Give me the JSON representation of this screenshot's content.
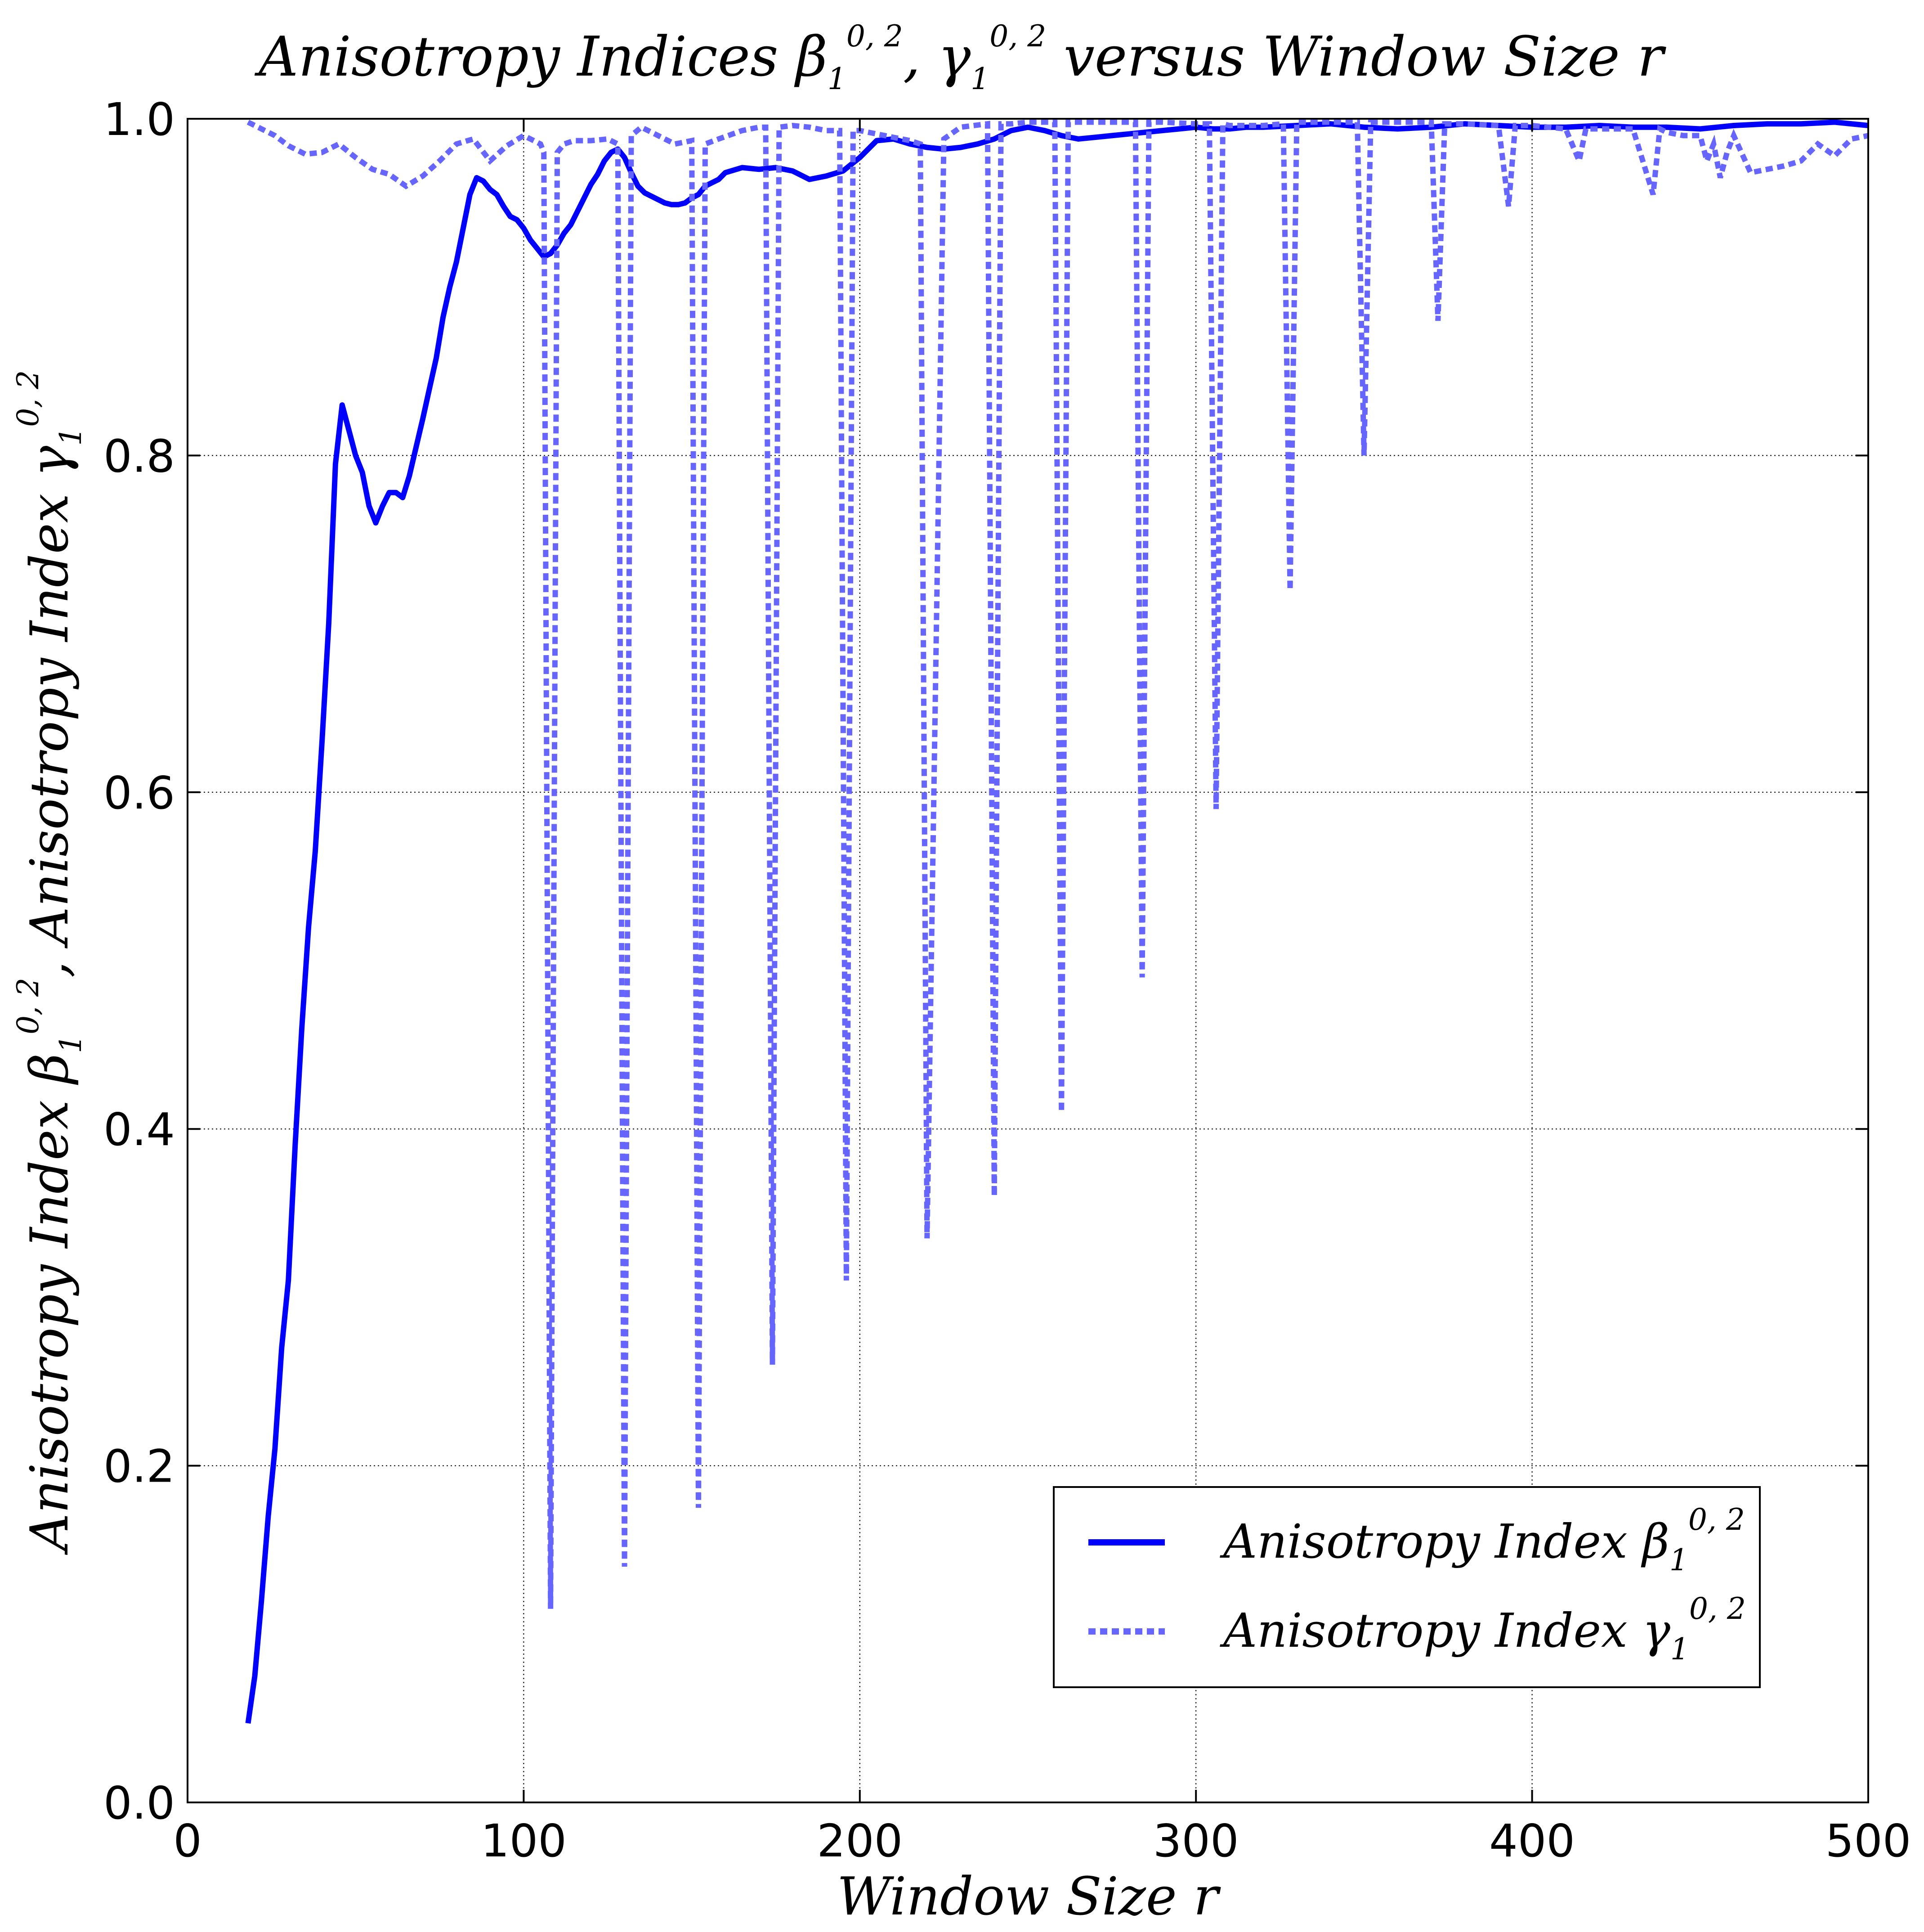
{
  "chart_data": {
    "type": "line",
    "title": {
      "pre": "Anisotropy Indices ",
      "sym1": "β",
      "mid": ", ",
      "sym2": "γ",
      "sub": "1",
      "sup": "0, 2",
      "post": " versus Window Size r"
    },
    "xlabel": "Window Size r",
    "ylabel": {
      "pre": "Anisotropy Index ",
      "sym1": "β",
      "sep": ",  Anisotropy Index ",
      "sym2": "γ",
      "sub": "1",
      "sup": "0, 2"
    },
    "xlim": [
      0,
      500
    ],
    "ylim": [
      0.0,
      1.0
    ],
    "x_ticks": [
      "0",
      "100",
      "200",
      "300",
      "400",
      "500"
    ],
    "x_tick_values": [
      0,
      100,
      200,
      300,
      400,
      500
    ],
    "y_ticks": [
      "0.0",
      "0.2",
      "0.4",
      "0.6",
      "0.8",
      "1.0"
    ],
    "y_tick_values": [
      0.0,
      0.2,
      0.4,
      0.6,
      0.8,
      1.0
    ],
    "grid": true,
    "legend_position": "lower-right",
    "series": [
      {
        "name": {
          "pre": "Anisotropy Index ",
          "sym": "β",
          "sub": "1",
          "sup": "0, 2"
        },
        "style": "solid",
        "color": "#0000ff",
        "x": [
          18,
          20,
          22,
          24,
          26,
          28,
          30,
          32,
          34,
          36,
          38,
          40,
          42,
          44,
          46,
          48,
          50,
          52,
          54,
          56,
          58,
          60,
          62,
          64,
          66,
          68,
          70,
          72,
          74,
          76,
          78,
          80,
          82,
          84,
          86,
          88,
          90,
          92,
          94,
          96,
          98,
          100,
          102,
          104,
          106,
          108,
          110,
          112,
          114,
          116,
          118,
          120,
          122,
          124,
          126,
          128,
          130,
          132,
          134,
          136,
          138,
          140,
          142,
          144,
          146,
          148,
          150,
          152,
          154,
          156,
          158,
          160,
          165,
          170,
          175,
          180,
          185,
          190,
          195,
          200,
          205,
          210,
          215,
          220,
          225,
          230,
          235,
          240,
          245,
          250,
          255,
          260,
          265,
          270,
          275,
          280,
          285,
          290,
          295,
          300,
          305,
          310,
          315,
          320,
          330,
          340,
          350,
          360,
          370,
          380,
          390,
          400,
          410,
          420,
          430,
          440,
          450,
          460,
          470,
          480,
          490,
          500
        ],
        "values": [
          0.047,
          0.075,
          0.12,
          0.17,
          0.21,
          0.27,
          0.31,
          0.39,
          0.46,
          0.52,
          0.565,
          0.63,
          0.7,
          0.795,
          0.83,
          0.815,
          0.8,
          0.79,
          0.77,
          0.76,
          0.77,
          0.778,
          0.778,
          0.775,
          0.788,
          0.805,
          0.822,
          0.84,
          0.858,
          0.882,
          0.9,
          0.915,
          0.935,
          0.955,
          0.965,
          0.963,
          0.958,
          0.955,
          0.948,
          0.942,
          0.94,
          0.935,
          0.928,
          0.923,
          0.918,
          0.92,
          0.925,
          0.932,
          0.937,
          0.945,
          0.953,
          0.961,
          0.967,
          0.975,
          0.98,
          0.982,
          0.977,
          0.968,
          0.96,
          0.956,
          0.954,
          0.952,
          0.95,
          0.949,
          0.949,
          0.95,
          0.953,
          0.955,
          0.96,
          0.962,
          0.964,
          0.968,
          0.971,
          0.97,
          0.971,
          0.969,
          0.964,
          0.966,
          0.969,
          0.977,
          0.987,
          0.988,
          0.985,
          0.983,
          0.982,
          0.983,
          0.985,
          0.988,
          0.993,
          0.995,
          0.993,
          0.99,
          0.988,
          0.989,
          0.99,
          0.991,
          0.992,
          0.993,
          0.994,
          0.995,
          0.994,
          0.994,
          0.995,
          0.995,
          0.996,
          0.997,
          0.995,
          0.994,
          0.995,
          0.997,
          0.996,
          0.995,
          0.995,
          0.996,
          0.995,
          0.995,
          0.994,
          0.996,
          0.997,
          0.997,
          0.998,
          0.996
        ]
      },
      {
        "name": {
          "pre": "Anisotropy Index ",
          "sym": "γ",
          "sub": "1",
          "sup": "0, 2"
        },
        "style": "dotted",
        "color": "#6666ff",
        "x": [
          18,
          22,
          26,
          30,
          35,
          40,
          45,
          50,
          55,
          60,
          65,
          70,
          75,
          80,
          85,
          90,
          95,
          100,
          105,
          106,
          108,
          110,
          112,
          115,
          120,
          125,
          128,
          130,
          132,
          135,
          140,
          145,
          150,
          152,
          154,
          158,
          165,
          170,
          172,
          174,
          176,
          180,
          185,
          190,
          194,
          196,
          198,
          200,
          210,
          215,
          218,
          220,
          225,
          230,
          238,
          240,
          242,
          245,
          250,
          258,
          260,
          262,
          265,
          275,
          282,
          284,
          286,
          290,
          300,
          304,
          306,
          308,
          310,
          320,
          326,
          328,
          330,
          340,
          348,
          350,
          352,
          360,
          370,
          372,
          374,
          380,
          390,
          393,
          395,
          400,
          410,
          414,
          416,
          418,
          430,
          436,
          438,
          440,
          445,
          450,
          452,
          454,
          456,
          458,
          460,
          465,
          470,
          475,
          480,
          485,
          490,
          495,
          500
        ],
        "values": [
          0.998,
          0.994,
          0.99,
          0.984,
          0.979,
          0.98,
          0.985,
          0.977,
          0.97,
          0.967,
          0.96,
          0.966,
          0.975,
          0.985,
          0.988,
          0.975,
          0.984,
          0.99,
          0.985,
          0.98,
          0.115,
          0.98,
          0.985,
          0.987,
          0.987,
          0.988,
          0.985,
          0.14,
          0.99,
          0.995,
          0.99,
          0.985,
          0.987,
          0.175,
          0.985,
          0.988,
          0.993,
          0.995,
          0.995,
          0.26,
          0.995,
          0.996,
          0.995,
          0.993,
          0.993,
          0.31,
          0.993,
          0.993,
          0.989,
          0.987,
          0.985,
          0.335,
          0.988,
          0.995,
          0.997,
          0.36,
          0.997,
          0.997,
          0.998,
          0.998,
          0.41,
          0.998,
          0.998,
          0.998,
          0.998,
          0.49,
          0.998,
          0.998,
          0.997,
          0.997,
          0.59,
          0.997,
          0.996,
          0.996,
          0.997,
          0.72,
          0.998,
          0.998,
          0.998,
          0.8,
          0.998,
          0.998,
          0.998,
          0.88,
          0.997,
          0.997,
          0.996,
          0.948,
          0.996,
          0.996,
          0.994,
          0.975,
          0.994,
          0.994,
          0.994,
          0.955,
          0.994,
          0.992,
          0.99,
          0.99,
          0.975,
          0.985,
          0.965,
          0.98,
          0.99,
          0.968,
          0.97,
          0.972,
          0.975,
          0.985,
          0.978,
          0.988,
          0.99
        ]
      }
    ]
  }
}
